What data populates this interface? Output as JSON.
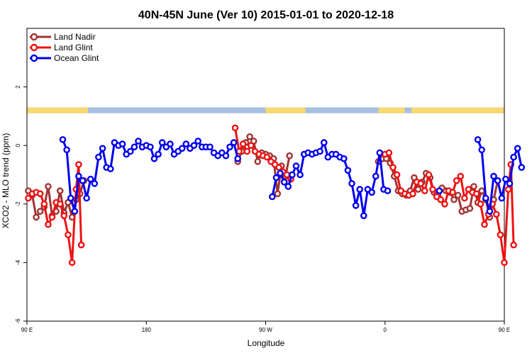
{
  "chart_data": {
    "type": "line",
    "title": "40N-45N June (Ver 10)   2015-01-01 to 2020-12-18",
    "xlabel": "Longitude",
    "ylabel": "XCO2 - MLO trend (ppm)",
    "xlim": [
      90,
      450
    ],
    "ylim": [
      -6,
      4
    ],
    "x_ticks": [
      {
        "value": 90,
        "label": "90 E"
      },
      {
        "value": 180,
        "label": "180"
      },
      {
        "value": 270,
        "label": "90 W"
      },
      {
        "value": 360,
        "label": "0"
      },
      {
        "value": 450,
        "label": "90 E"
      },
      {
        "value": 540,
        "label": "180"
      }
    ],
    "y_ticks": [
      {
        "value": -6,
        "label": "-6"
      },
      {
        "value": -4,
        "label": "-4"
      },
      {
        "value": -2,
        "label": "-2"
      },
      {
        "value": 0,
        "label": "0"
      },
      {
        "value": 2,
        "label": "2"
      }
    ],
    "legend_position": "top-left",
    "grid": false,
    "land_sea_band": {
      "y_range": [
        1.1,
        1.3
      ],
      "land_color": "#f8d870",
      "ocean_color": "#a8c0e0",
      "land_intervals": [
        [
          90,
          130
        ],
        [
          130,
          136
        ],
        [
          270,
          300
        ],
        [
          355,
          375
        ],
        [
          380,
          470
        ],
        [
          480,
          505
        ]
      ]
    },
    "series": [
      {
        "name": "Land Nadir",
        "color": "#a03434",
        "segments": [
          [
            [
              91,
              -1.55
            ],
            [
              94,
              -1.7
            ],
            [
              97,
              -2.45
            ],
            [
              100,
              -2.25
            ],
            [
              103,
              -2.1
            ],
            [
              106,
              -1.4
            ],
            [
              109,
              -2.4
            ],
            [
              112,
              -2.25
            ],
            [
              115,
              -1.55
            ],
            [
              118,
              -2.3
            ],
            [
              121,
              -1.95
            ],
            [
              124,
              -2.45
            ],
            [
              127,
              -1.85
            ],
            [
              130,
              -1.65
            ],
            [
              133,
              -1.2
            ]
          ],
          [
            [
              249,
              -0.55
            ],
            [
              252,
              -0.2
            ],
            [
              255,
              0.1
            ],
            [
              258,
              0.3
            ],
            [
              261,
              0.15
            ],
            [
              264,
              -0.55
            ],
            [
              267,
              -0.25
            ],
            [
              270,
              -0.3
            ],
            [
              273,
              -0.35
            ],
            [
              276,
              -0.45
            ],
            [
              279,
              -1.65
            ],
            [
              282,
              -0.7
            ],
            [
              285,
              -1.05
            ],
            [
              288,
              -0.35
            ]
          ],
          [
            [
              355,
              -0.55
            ],
            [
              358,
              -0.45
            ],
            [
              361,
              -0.45
            ],
            [
              364,
              -0.6
            ],
            [
              367,
              -1.05
            ],
            [
              370,
              -1.55
            ],
            [
              373,
              -1.65
            ],
            [
              376,
              -1.7
            ],
            [
              379,
              -1.55
            ],
            [
              382,
              -1.1
            ],
            [
              385,
              -1.5
            ],
            [
              388,
              -1.25
            ],
            [
              391,
              -0.95
            ],
            [
              394,
              -1.1
            ],
            [
              397,
              -1.6
            ],
            [
              400,
              -1.7
            ],
            [
              403,
              -1.45
            ],
            [
              406,
              -1.55
            ],
            [
              409,
              -1.6
            ],
            [
              412,
              -1.85
            ],
            [
              415,
              -1.7
            ],
            [
              418,
              -2.25
            ],
            [
              421,
              -2.2
            ],
            [
              424,
              -2.15
            ],
            [
              427,
              -1.4
            ],
            [
              430,
              -1.95
            ],
            [
              433,
              -1.55
            ],
            [
              436,
              -1.85
            ],
            [
              439,
              -2.45
            ],
            [
              442,
              -1.85
            ],
            [
              445,
              -1.2
            ]
          ]
        ]
      },
      {
        "name": "Land Glint",
        "color": "#ee1111",
        "segments": [
          [
            [
              91,
              -1.8
            ],
            [
              94,
              -1.65
            ],
            [
              97,
              -1.6
            ],
            [
              100,
              -1.65
            ],
            [
              103,
              -2.0
            ],
            [
              106,
              -2.7
            ],
            [
              109,
              -2.45
            ],
            [
              112,
              -1.95
            ],
            [
              115,
              -2.0
            ],
            [
              118,
              -2.4
            ],
            [
              121,
              -3.05
            ],
            [
              124,
              -4.0
            ],
            [
              127,
              -1.5
            ],
            [
              129,
              -0.65
            ],
            [
              131,
              -3.4
            ]
          ],
          [
            [
              247,
              0.6
            ],
            [
              250,
              -0.2
            ],
            [
              253,
              0.05
            ],
            [
              256,
              -0.2
            ],
            [
              259,
              0.0
            ],
            [
              262,
              -0.2
            ],
            [
              265,
              -0.3
            ],
            [
              268,
              -0.35
            ],
            [
              271,
              -0.4
            ],
            [
              274,
              -0.55
            ],
            [
              277,
              -0.65
            ],
            [
              280,
              -0.75
            ],
            [
              283,
              -0.9
            ],
            [
              286,
              -1.0
            ],
            [
              289,
              -1.15
            ]
          ],
          [
            [
              357,
              -0.3
            ],
            [
              360,
              -0.3
            ],
            [
              363,
              -0.25
            ],
            [
              366,
              -0.75
            ],
            [
              369,
              -1.0
            ],
            [
              372,
              -1.55
            ],
            [
              375,
              -1.65
            ],
            [
              378,
              -1.7
            ],
            [
              381,
              -1.65
            ],
            [
              384,
              -1.25
            ],
            [
              387,
              -1.3
            ],
            [
              390,
              -1.55
            ],
            [
              393,
              -1.0
            ],
            [
              396,
              -1.5
            ],
            [
              399,
              -1.75
            ],
            [
              402,
              -1.85
            ],
            [
              405,
              -2.0
            ],
            [
              408,
              -1.55
            ],
            [
              411,
              -1.6
            ],
            [
              414,
              -1.2
            ],
            [
              417,
              -1.05
            ],
            [
              420,
              -1.8
            ],
            [
              423,
              -1.5
            ],
            [
              426,
              -1.6
            ],
            [
              429,
              -1.65
            ],
            [
              432,
              -2.0
            ],
            [
              435,
              -2.7
            ],
            [
              438,
              -2.35
            ],
            [
              441,
              -2.0
            ],
            [
              444,
              -2.35
            ],
            [
              447,
              -3.05
            ],
            [
              450,
              -4.0
            ],
            [
              453,
              -1.5
            ],
            [
              455,
              -0.65
            ],
            [
              457,
              -3.4
            ]
          ]
        ]
      },
      {
        "name": "Ocean Glint",
        "color": "#0000ee",
        "segments": [
          [
            [
              117,
              0.2
            ],
            [
              120,
              -0.15
            ],
            [
              123,
              -1.8
            ],
            [
              126,
              -2.25
            ],
            [
              129,
              -1.05
            ],
            [
              132,
              -1.2
            ],
            [
              135,
              -1.8
            ],
            [
              138,
              -1.15
            ],
            [
              141,
              -1.3
            ],
            [
              144,
              -0.4
            ],
            [
              147,
              -0.1
            ],
            [
              150,
              -0.75
            ],
            [
              153,
              -0.8
            ],
            [
              156,
              0.1
            ],
            [
              159,
              0.0
            ],
            [
              162,
              0.05
            ],
            [
              165,
              -0.3
            ],
            [
              168,
              -0.2
            ],
            [
              171,
              -0.05
            ],
            [
              174,
              0.15
            ],
            [
              177,
              -0.05
            ],
            [
              180,
              0.0
            ],
            [
              183,
              -0.05
            ],
            [
              186,
              -0.45
            ],
            [
              189,
              -0.3
            ],
            [
              192,
              0.1
            ],
            [
              195,
              -0.05
            ],
            [
              198,
              0.05
            ],
            [
              201,
              -0.3
            ],
            [
              204,
              -0.2
            ],
            [
              207,
              -0.1
            ],
            [
              210,
              0.05
            ],
            [
              213,
              -0.1
            ],
            [
              216,
              0.0
            ],
            [
              219,
              0.15
            ],
            [
              222,
              -0.05
            ],
            [
              225,
              -0.05
            ],
            [
              228,
              -0.05
            ],
            [
              231,
              -0.25
            ],
            [
              234,
              -0.35
            ],
            [
              237,
              -0.25
            ],
            [
              240,
              -0.35
            ],
            [
              243,
              -0.05
            ],
            [
              246,
              0.1
            ],
            [
              249,
              -0.45
            ]
          ],
          [
            [
              275,
              -1.75
            ],
            [
              278,
              -1.1
            ],
            [
              281,
              -0.95
            ],
            [
              284,
              -1.25
            ],
            [
              287,
              -1.4
            ],
            [
              290,
              -1.0
            ],
            [
              293,
              -0.7
            ],
            [
              296,
              -1.0
            ],
            [
              299,
              -0.3
            ],
            [
              302,
              -0.25
            ],
            [
              305,
              -0.3
            ],
            [
              308,
              -0.25
            ],
            [
              311,
              -0.2
            ],
            [
              314,
              0.1
            ],
            [
              317,
              -0.4
            ],
            [
              320,
              -0.3
            ],
            [
              323,
              -0.3
            ],
            [
              326,
              -0.4
            ],
            [
              329,
              -0.45
            ],
            [
              332,
              -0.85
            ],
            [
              335,
              -1.3
            ],
            [
              338,
              -2.05
            ],
            [
              341,
              -1.5
            ],
            [
              344,
              -2.4
            ],
            [
              347,
              -1.5
            ],
            [
              350,
              -1.6
            ],
            [
              353,
              -1.05
            ],
            [
              356,
              -0.25
            ],
            [
              359,
              -1.5
            ],
            [
              362,
              -1.55
            ]
          ],
          [
            [
              401,
              -1.55
            ]
          ],
          [
            [
              430,
              0.2
            ],
            [
              433,
              -0.15
            ],
            [
              436,
              -1.8
            ],
            [
              439,
              -2.25
            ],
            [
              442,
              -1.05
            ],
            [
              445,
              -1.2
            ],
            [
              448,
              -1.8
            ],
            [
              451,
              -1.15
            ],
            [
              454,
              -1.3
            ],
            [
              457,
              -0.4
            ],
            [
              460,
              -0.1
            ],
            [
              463,
              -0.75
            ]
          ]
        ]
      }
    ]
  }
}
